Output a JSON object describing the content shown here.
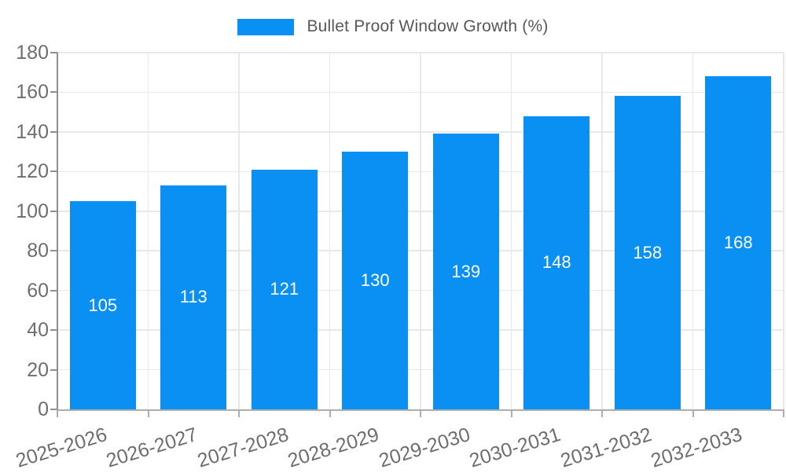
{
  "legend": {
    "label": "Bullet Proof Window Growth (%)"
  },
  "chart_data": {
    "type": "bar",
    "title": "Bullet Proof Window Growth (%)",
    "categories": [
      "2025-2026",
      "2026-2027",
      "2027-2028",
      "2028-2029",
      "2029-2030",
      "2030-2031",
      "2031-2032",
      "2032-2033"
    ],
    "values": [
      105,
      113,
      121,
      130,
      139,
      148,
      158,
      168
    ],
    "xlabel": "",
    "ylabel": "",
    "ylim": [
      0,
      180
    ],
    "ytick_step": 20,
    "yticks": [
      0,
      20,
      40,
      60,
      80,
      100,
      120,
      140,
      160,
      180
    ],
    "grid": true,
    "legend_position": "top-center",
    "value_labels": "inside-middle",
    "x_label_rotation_deg": -17,
    "colors": {
      "bar": "#0990f2",
      "grid": "#e8e8e8",
      "y_axis": "#8f8f8f",
      "x_axis": "#aeaeae",
      "tick_label": "#6e6e6e",
      "legend_text": "#58585a",
      "value_label": "#ffffff",
      "background": "#ffffff"
    }
  }
}
